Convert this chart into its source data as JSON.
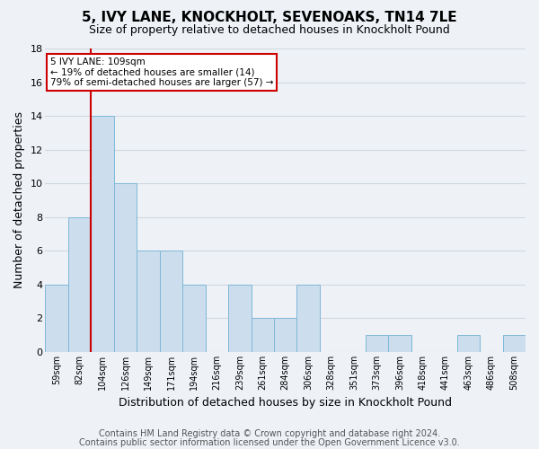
{
  "title_line1": "5, IVY LANE, KNOCKHOLT, SEVENOAKS, TN14 7LE",
  "title_line2": "Size of property relative to detached houses in Knockholt Pound",
  "xlabel": "Distribution of detached houses by size in Knockholt Pound",
  "ylabel": "Number of detached properties",
  "footer_line1": "Contains HM Land Registry data © Crown copyright and database right 2024.",
  "footer_line2": "Contains public sector information licensed under the Open Government Licence v3.0.",
  "bins": [
    "59sqm",
    "82sqm",
    "104sqm",
    "126sqm",
    "149sqm",
    "171sqm",
    "194sqm",
    "216sqm",
    "239sqm",
    "261sqm",
    "284sqm",
    "306sqm",
    "328sqm",
    "351sqm",
    "373sqm",
    "396sqm",
    "418sqm",
    "441sqm",
    "463sqm",
    "486sqm",
    "508sqm"
  ],
  "bar_heights": [
    4,
    8,
    14,
    10,
    6,
    6,
    4,
    0,
    4,
    2,
    2,
    4,
    0,
    0,
    1,
    1,
    0,
    0,
    1,
    0,
    1
  ],
  "bar_color": "#ccdded",
  "bar_edge_color": "#7fb8d8",
  "grid_color": "#d0d8e0",
  "background_color": "#eef2f7",
  "vline_color": "#cc0000",
  "vline_bin_index": 2,
  "annotation_text_line1": "5 IVY LANE: 109sqm",
  "annotation_text_line2": "← 19% of detached houses are smaller (14)",
  "annotation_text_line3": "79% of semi-detached houses are larger (57) →",
  "annotation_box_color": "white",
  "annotation_box_edge": "#cc0000",
  "ylim": [
    0,
    18
  ],
  "yticks": [
    0,
    2,
    4,
    6,
    8,
    10,
    12,
    14,
    16,
    18
  ],
  "title_fontsize": 11,
  "subtitle_fontsize": 9,
  "ylabel_fontsize": 9,
  "xlabel_fontsize": 9,
  "tick_fontsize": 8,
  "footer_fontsize": 7
}
